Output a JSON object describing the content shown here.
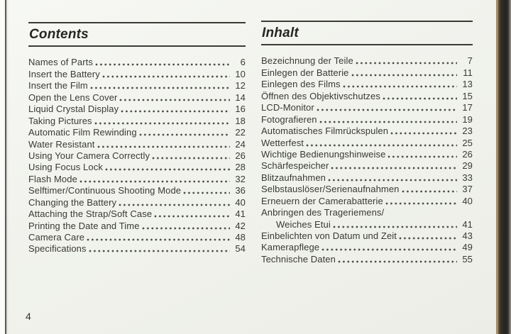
{
  "page": {
    "number": "4"
  },
  "colors": {
    "paper": "#f2f3ee",
    "ink": "#3a3935",
    "rule": "#3b3a35"
  },
  "left_column": {
    "title": "Contents",
    "entries": [
      {
        "label": "Names of Parts",
        "page": "6"
      },
      {
        "label": "Insert the Battery",
        "page": "10"
      },
      {
        "label": "Insert the Film",
        "page": "12"
      },
      {
        "label": "Open the Lens Cover",
        "page": "14"
      },
      {
        "label": "Liquid Crystal Display",
        "page": "16"
      },
      {
        "label": "Taking Pictures",
        "page": "18"
      },
      {
        "label": "Automatic Film Rewinding",
        "page": "22"
      },
      {
        "label": "Water Resistant",
        "page": "24"
      },
      {
        "label": "Using Your Camera Correctly",
        "page": "26"
      },
      {
        "label": "Using Focus Lock",
        "page": "28"
      },
      {
        "label": "Flash Mode",
        "page": "32"
      },
      {
        "label": "Selftimer/Continuous Shooting Mode",
        "page": "36"
      },
      {
        "label": "Changing the Battery",
        "page": "40"
      },
      {
        "label": "Attaching the Strap/Soft Case",
        "page": "41"
      },
      {
        "label": "Printing the Date and Time",
        "page": "42"
      },
      {
        "label": "Camera Care",
        "page": "48"
      },
      {
        "label": "Specifications",
        "page": "54"
      }
    ]
  },
  "right_column": {
    "title": "Inhalt",
    "entries": [
      {
        "label": "Bezeichnung der Teile",
        "page": "7"
      },
      {
        "label": "Einlegen der Batterie",
        "page": "11"
      },
      {
        "label": "Einlegen des Films",
        "page": "13"
      },
      {
        "label": "Öffnen des Objektivschutzes",
        "page": "15"
      },
      {
        "label": "LCD-Monitor",
        "page": "17"
      },
      {
        "label": "Fotografieren",
        "page": "19"
      },
      {
        "label": "Automatisches Filmrückspulen",
        "page": "23"
      },
      {
        "label": "Wetterfest",
        "page": "25"
      },
      {
        "label": "Wichtige Bedienungshinweise",
        "page": "26"
      },
      {
        "label": "Schärfespeicher",
        "page": "29"
      },
      {
        "label": "Blitzaufnahmen",
        "page": "33"
      },
      {
        "label": "Selbstauslöser/Serienaufnahmen",
        "page": "37"
      },
      {
        "label": "Erneuern der Camerabatterie",
        "page": "40"
      },
      {
        "label": "Anbringen des Trageriemens/",
        "page": ""
      },
      {
        "label": "Weiches Etui",
        "page": "41",
        "indent": true
      },
      {
        "label": "Einbelichten von Datum und Zeit",
        "page": "43"
      },
      {
        "label": "Kamerapflege",
        "page": "49"
      },
      {
        "label": "Technische Daten",
        "page": "55"
      }
    ]
  }
}
